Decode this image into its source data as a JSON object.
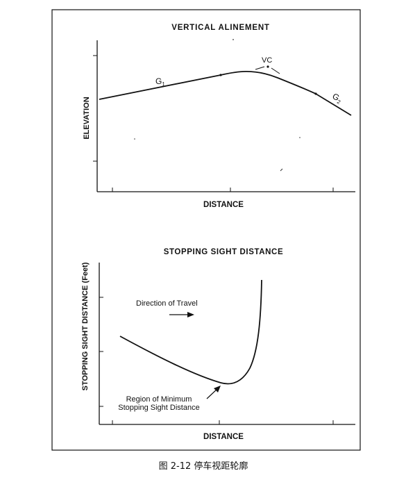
{
  "top_panel": {
    "title": "VERTICAL ALINEMENT",
    "ylabel": "ELEVATION",
    "xlabel": "DISTANCE",
    "labels": {
      "g1": "G",
      "g1_sub": "1",
      "g2": "G",
      "g2_sub": "2",
      "vc": "VC"
    }
  },
  "bottom_panel": {
    "title": "STOPPING SIGHT DISTANCE",
    "ylabel": "STOPPING SIGHT DISTANCE (Feet)",
    "xlabel": "DISTANCE",
    "direction": "Direction of Travel",
    "region_line1": "Region of Minimum",
    "region_line2": "Stopping Sight Distance"
  },
  "caption": "图 2-12 停车视距轮廓"
}
